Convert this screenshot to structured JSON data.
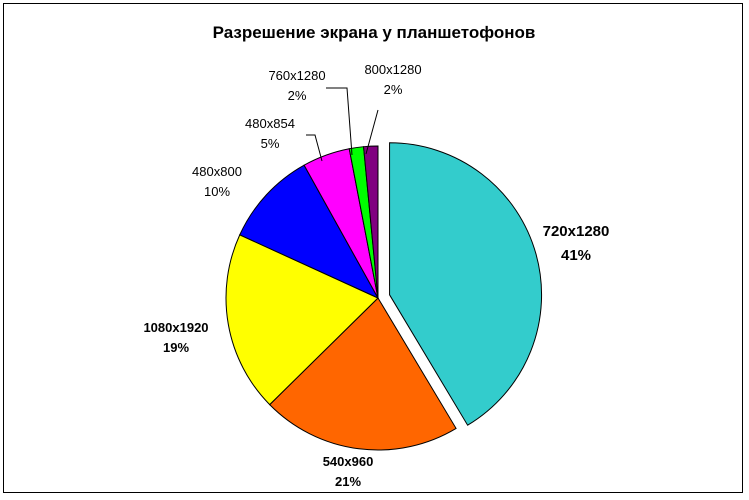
{
  "chart_data": {
    "type": "pie",
    "title": "Разрешение экрана у планшетофонов",
    "start_angle_deg": 0,
    "direction": "clockwise",
    "slices": [
      {
        "category": "720x1280",
        "percent_label": "41%",
        "value": 41,
        "color": "#33CCCC",
        "exploded": true,
        "bold": true
      },
      {
        "category": "540x960",
        "percent_label": "21%",
        "value": 21,
        "color": "#FF6600",
        "exploded": false,
        "bold": true
      },
      {
        "category": "1080x1920",
        "percent_label": "19%",
        "value": 19,
        "color": "#FFFF00",
        "exploded": false,
        "bold": true
      },
      {
        "category": "480x800",
        "percent_label": "10%",
        "value": 10,
        "color": "#0000FF",
        "exploded": false,
        "bold": false
      },
      {
        "category": "480x854",
        "percent_label": "5%",
        "value": 5,
        "color": "#FF00FF",
        "exploded": false,
        "bold": false
      },
      {
        "category": "760x1280",
        "percent_label": "2%",
        "value": 1.5,
        "color": "#00FF00",
        "exploded": false,
        "bold": false
      },
      {
        "category": "800x1280",
        "percent_label": "2%",
        "value": 1.5,
        "color": "#800080",
        "exploded": false,
        "bold": false
      }
    ],
    "legend": "none",
    "border_color": "#000000",
    "slice_outline_color": "#000000"
  }
}
